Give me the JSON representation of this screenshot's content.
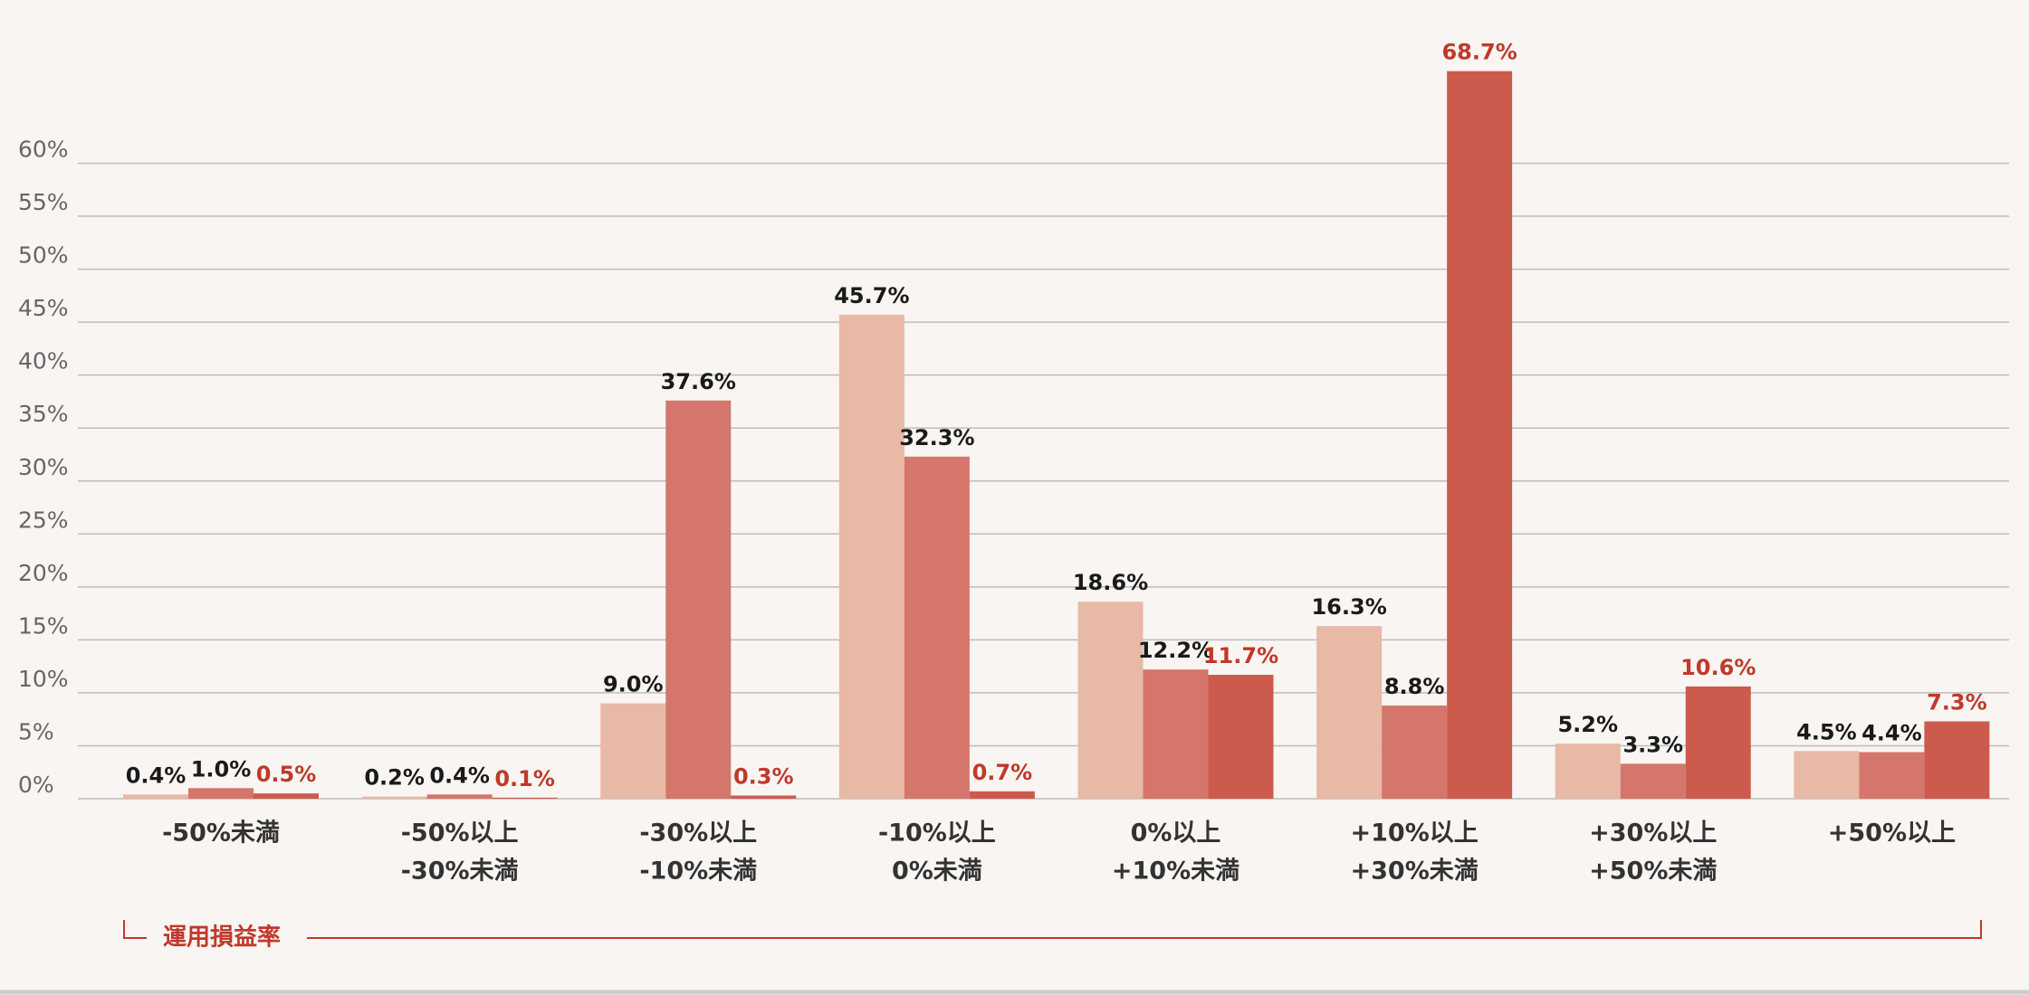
{
  "chart_data": {
    "type": "bar",
    "categories": [
      [
        "-50%未満"
      ],
      [
        "-50%以上",
        "-30%未満"
      ],
      [
        "-30%以上",
        "-10%未満"
      ],
      [
        "-10%以上",
        "0%未満"
      ],
      [
        "0%以上",
        "+10%未満"
      ],
      [
        "+10%以上",
        "+30%未満"
      ],
      [
        "+30%以上",
        "+50%未満"
      ],
      [
        "+50%以上"
      ]
    ],
    "series": [
      {
        "color": "#e8b9a5",
        "label_color": "#1a1a1a",
        "values": [
          0.4,
          0.2,
          9.0,
          45.7,
          18.6,
          16.3,
          5.2,
          4.5
        ],
        "value_labels": [
          "0.4%",
          "0.2%",
          "9.0%",
          "45.7%",
          "18.6%",
          "16.3%",
          "5.2%",
          "4.5%"
        ]
      },
      {
        "color": "#d4766b",
        "label_color": "#1a1a1a",
        "values": [
          1.0,
          0.4,
          37.6,
          32.3,
          12.2,
          8.8,
          3.3,
          4.4
        ],
        "value_labels": [
          "1.0%",
          "0.4%",
          "37.6%",
          "32.3%",
          "12.2%",
          "8.8%",
          "3.3%",
          "4.4%"
        ]
      },
      {
        "color": "#cc5b4d",
        "label_color": "#c0392b",
        "values": [
          0.5,
          0.1,
          0.3,
          0.7,
          11.7,
          68.7,
          10.6,
          7.3
        ],
        "value_labels": [
          "0.5%",
          "0.1%",
          "0.3%",
          "0.7%",
          "11.7%",
          "68.7%",
          "10.6%",
          "7.3%"
        ]
      }
    ],
    "ylim": [
      0,
      72
    ],
    "yticks": [
      {
        "value": 0,
        "label": "0%"
      },
      {
        "value": 5,
        "label": "5%"
      },
      {
        "value": 10,
        "label": "10%"
      },
      {
        "value": 15,
        "label": "15%"
      },
      {
        "value": 20,
        "label": "20%"
      },
      {
        "value": 25,
        "label": "25%"
      },
      {
        "value": 30,
        "label": "30%"
      },
      {
        "value": 35,
        "label": "35%"
      },
      {
        "value": 40,
        "label": "40%"
      },
      {
        "value": 45,
        "label": "45%"
      },
      {
        "value": 50,
        "label": "50%"
      },
      {
        "value": 55,
        "label": "55%"
      },
      {
        "value": 60,
        "label": "60%"
      }
    ],
    "grid": true,
    "xlabel": "運用損益率"
  }
}
